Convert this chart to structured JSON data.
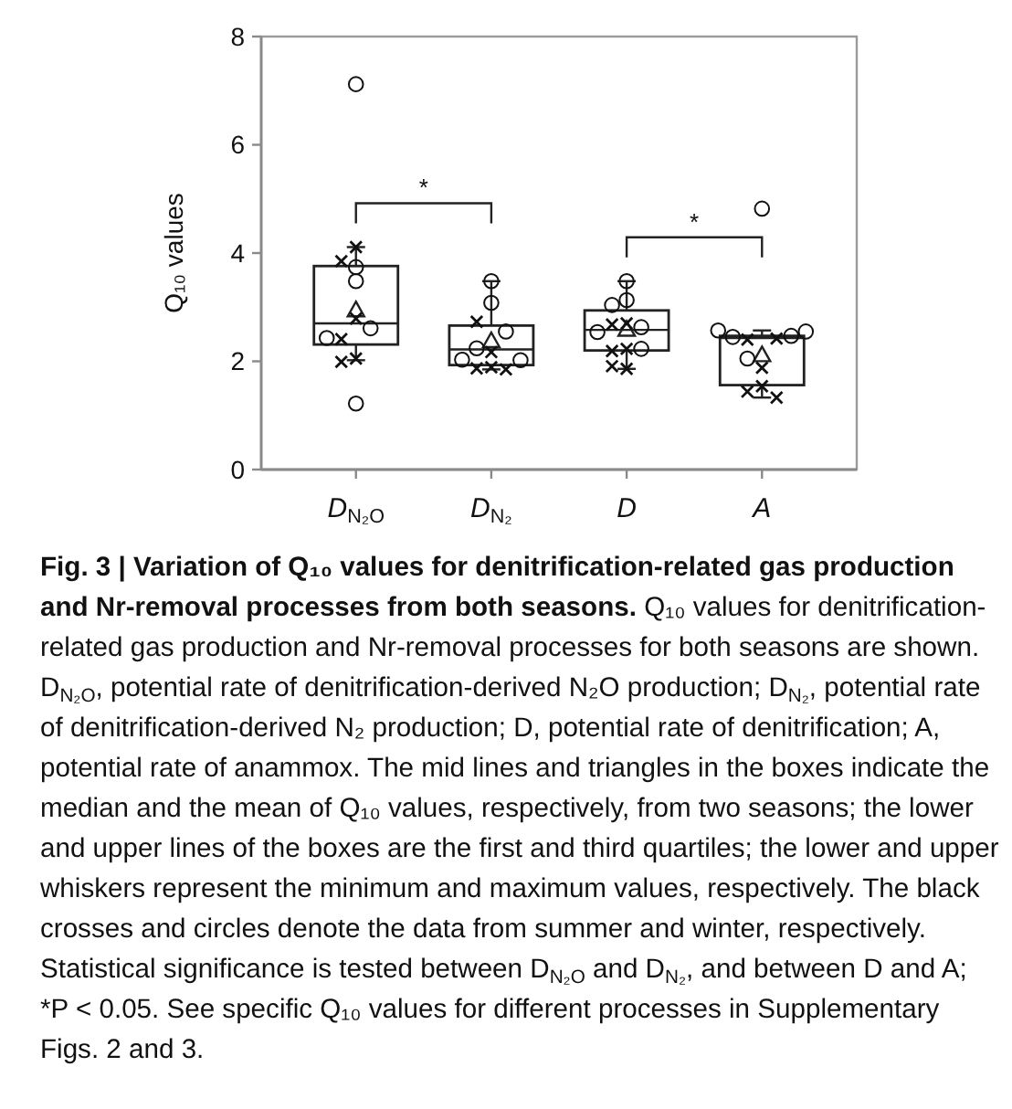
{
  "chart_data": {
    "type": "box",
    "title": "Fig. 3 | Variation of Q₁₀ values for denitrification-related gas production and Nr-removal processes from both seasons.",
    "subtitle": "Q₁₀ values for denitrification-related gas production and Nr-removal processes for both seasons are shown. D$_{N₂O}$, potential rate of denitrification-derived N₂O production; D$_{N₂}$, potential rate of denitrification-derived N₂ production; D, potential rate of denitrification; A, potential rate of anammox. The mid lines and triangles in the boxes indicate the median and the mean of Q₁₀ values, respectively, from two seasons; the lower and upper lines of the boxes are the first and third quartiles; the lower and upper whiskers represent the minimum and maximum values, respectively. The black crosses and circles denote the data from summer and winter, respectively. Statistical significance is tested between D$_{N₂O}$ and D$_{N₂}$, and between D and A; *P < 0.05. See specific Q₁₀ values for different processes in Supplementary Figs. 2 and 3.",
    "ylabel": "Q₁₀ values",
    "categories": [
      "D$_{N₂O}$",
      "D$_{N₂}$",
      "D",
      "A"
    ],
    "color": "#222222",
    "boxes": [
      {
        "low": 2.02,
        "q1": 2.31,
        "median": 2.7,
        "q3": 3.76,
        "high": 4.11,
        "mean": 2.95
      },
      {
        "low": 1.85,
        "q1": 1.93,
        "median": 2.22,
        "q3": 2.66,
        "high": 3.48,
        "mean": 2.38
      },
      {
        "low": 1.86,
        "q1": 2.2,
        "median": 2.58,
        "q3": 2.94,
        "high": 3.48,
        "mean": 2.59
      },
      {
        "low": 1.33,
        "q1": 1.56,
        "median": 2.43,
        "q3": 2.47,
        "high": 2.57,
        "mean": 2.12
      }
    ],
    "series": [
      {
        "type": "scatter",
        "marker": "cross",
        "color": "#111111",
        "x": [
          "D$_{N₂O}$",
          "D$_{N₂O}$",
          "D$_{N₂O}$",
          "D$_{N₂O}$",
          "D$_{N₂O}$",
          "D$_{N₂O}$",
          "D$_{N₂}$",
          "D$_{N₂}$",
          "D$_{N₂}$",
          "D$_{N₂}$",
          "D$_{N₂}$",
          "D",
          "D",
          "D",
          "D",
          "D",
          "D",
          "A",
          "A",
          "A",
          "A",
          "A",
          "A"
        ],
        "values": [
          3.85,
          4.11,
          2.79,
          2.41,
          2.05,
          1.99,
          2.73,
          2.17,
          1.87,
          1.85,
          1.89,
          2.7,
          2.68,
          2.23,
          2.19,
          1.86,
          1.91,
          2.4,
          2.42,
          1.88,
          1.44,
          1.54,
          1.33
        ]
      },
      {
        "type": "scatter",
        "marker": "circle",
        "color": "#111111",
        "x": [
          "D$_{N₂O}$",
          "D$_{N₂O}$",
          "D$_{N₂O}$",
          "D$_{N₂O}$",
          "D$_{N₂O}$",
          "D$_{N₂O}$",
          "D$_{N₂}$",
          "D$_{N₂}$",
          "D$_{N₂}$",
          "D$_{N₂}$",
          "D$_{N₂}$",
          "D$_{N₂}$",
          "D",
          "D",
          "D",
          "D",
          "D",
          "D",
          "A",
          "A",
          "A",
          "A",
          "A",
          "A"
        ],
        "values": [
          7.12,
          3.74,
          3.48,
          2.61,
          2.43,
          1.22,
          3.48,
          3.08,
          2.55,
          2.24,
          2.03,
          2.02,
          3.48,
          3.13,
          3.04,
          2.63,
          2.54,
          2.23,
          4.82,
          2.45,
          2.47,
          2.57,
          2.55,
          2.05
        ]
      }
    ],
    "ylim": [
      0,
      8
    ],
    "yticks": [
      0,
      2,
      4,
      6,
      8
    ],
    "annotations": [
      "*",
      "*"
    ]
  }
}
